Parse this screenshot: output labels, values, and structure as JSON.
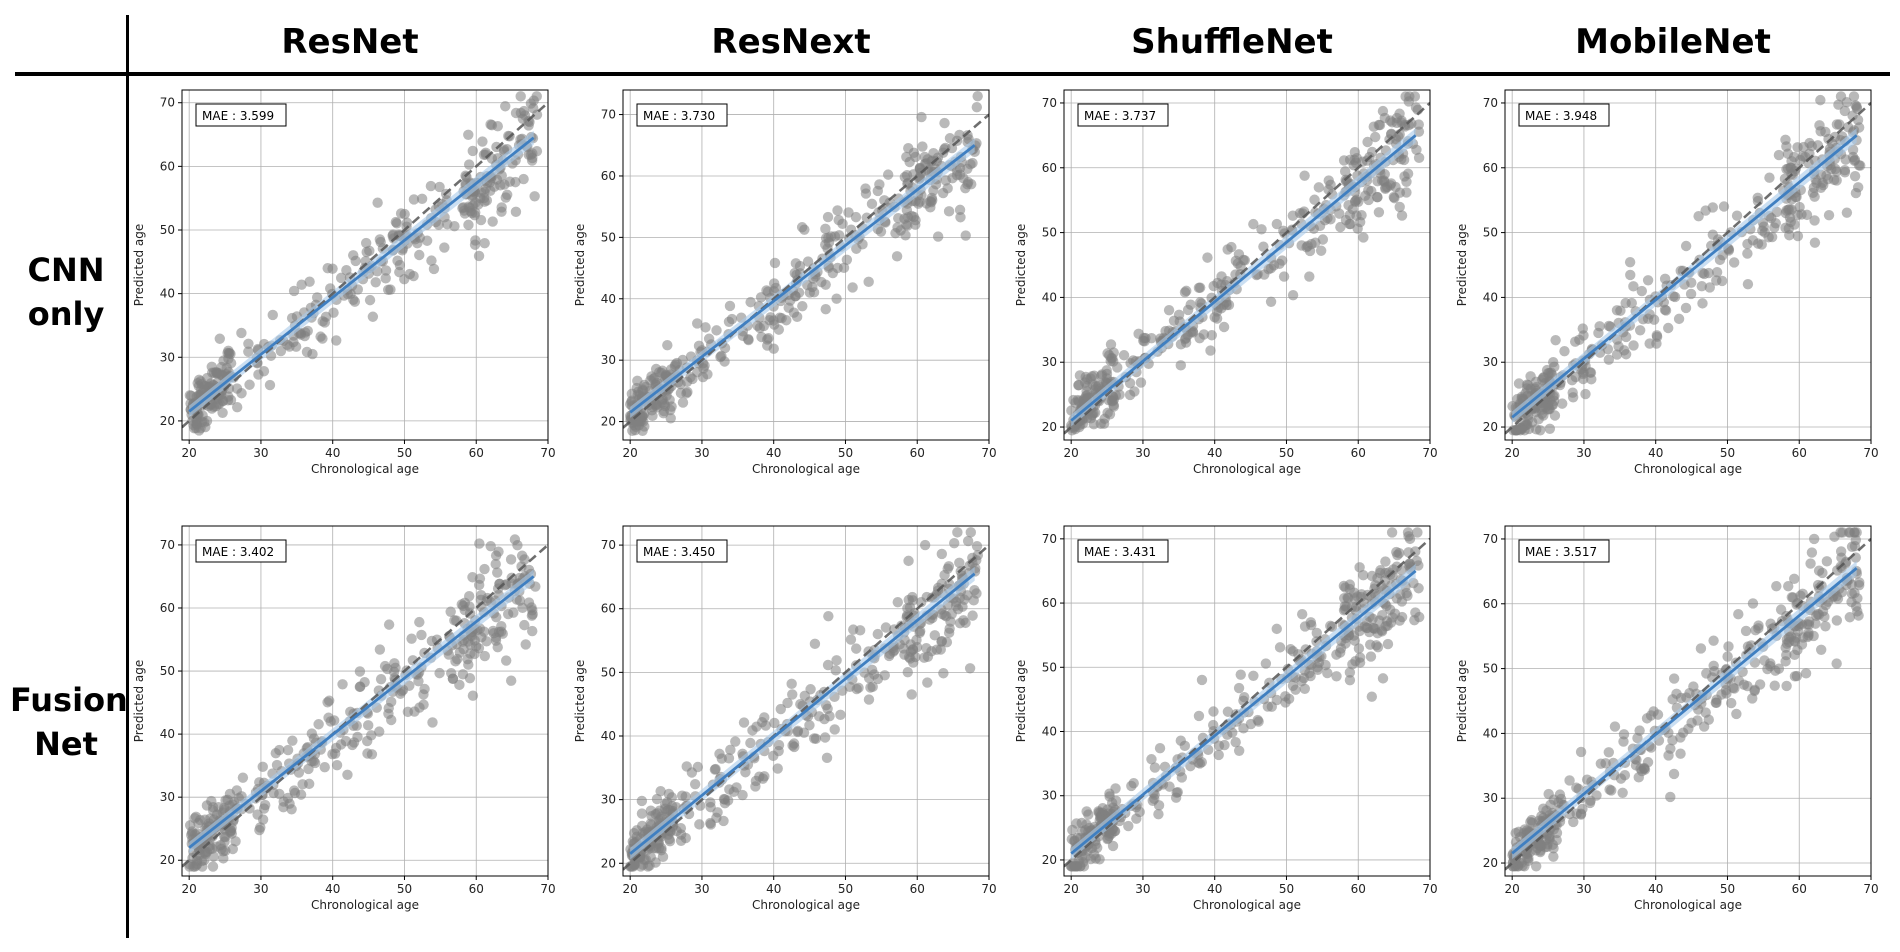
{
  "columns": [
    "ResNet",
    "ResNext",
    "ShuffleNet",
    "MobileNet"
  ],
  "rows": [
    {
      "line1": "CNN",
      "line2": "only"
    },
    {
      "line1": "Fusion",
      "line2": "Net"
    }
  ],
  "chart_data": [
    {
      "type": "scatter",
      "model": "ResNet",
      "method": "CNN only",
      "annotation": "MAE : 3.599",
      "xlabel": "Chronological age",
      "ylabel": "Predicted age",
      "xlim": [
        19,
        70
      ],
      "ylim": [
        17,
        72
      ],
      "xticks": [
        20,
        30,
        40,
        50,
        60,
        70
      ],
      "yticks": [
        20,
        30,
        40,
        50,
        60,
        70
      ],
      "grid": true,
      "point_count": 400,
      "fit": {
        "x": [
          20,
          68
        ],
        "y": [
          21.5,
          64.5
        ]
      },
      "identity": true
    },
    {
      "type": "scatter",
      "model": "ResNext",
      "method": "CNN only",
      "annotation": "MAE : 3.730",
      "xlabel": "Chronological age",
      "ylabel": "Predicted age",
      "xlim": [
        19,
        70
      ],
      "ylim": [
        17,
        74
      ],
      "xticks": [
        20,
        30,
        40,
        50,
        60,
        70
      ],
      "yticks": [
        20,
        30,
        40,
        50,
        60,
        70
      ],
      "grid": true,
      "point_count": 400,
      "fit": {
        "x": [
          20,
          68
        ],
        "y": [
          21.5,
          65
        ]
      },
      "identity": true
    },
    {
      "type": "scatter",
      "model": "ShuffleNet",
      "method": "CNN only",
      "annotation": "MAE : 3.737",
      "xlabel": "Chronological age",
      "ylabel": "Predicted age",
      "xlim": [
        19,
        70
      ],
      "ylim": [
        18,
        72
      ],
      "xticks": [
        20,
        30,
        40,
        50,
        60,
        70
      ],
      "yticks": [
        20,
        30,
        40,
        50,
        60,
        70
      ],
      "grid": true,
      "point_count": 400,
      "fit": {
        "x": [
          20,
          68
        ],
        "y": [
          21,
          65
        ]
      },
      "identity": true
    },
    {
      "type": "scatter",
      "model": "MobileNet",
      "method": "CNN only",
      "annotation": "MAE : 3.948",
      "xlabel": "Chronological age",
      "ylabel": "Predicted age",
      "xlim": [
        19,
        70
      ],
      "ylim": [
        18,
        72
      ],
      "xticks": [
        20,
        30,
        40,
        50,
        60,
        70
      ],
      "yticks": [
        20,
        30,
        40,
        50,
        60,
        70
      ],
      "grid": true,
      "point_count": 400,
      "fit": {
        "x": [
          20,
          68
        ],
        "y": [
          21.5,
          65
        ]
      },
      "identity": true
    },
    {
      "type": "scatter",
      "model": "ResNet",
      "method": "Fusion Net",
      "annotation": "MAE : 3.402",
      "xlabel": "Chronological age",
      "ylabel": "Predicted age",
      "xlim": [
        19,
        70
      ],
      "ylim": [
        17.5,
        73
      ],
      "xticks": [
        20,
        30,
        40,
        50,
        60,
        70
      ],
      "yticks": [
        20,
        30,
        40,
        50,
        60,
        70
      ],
      "grid": true,
      "point_count": 400,
      "fit": {
        "x": [
          20,
          68
        ],
        "y": [
          22,
          65
        ]
      },
      "identity": true
    },
    {
      "type": "scatter",
      "model": "ResNext",
      "method": "Fusion Net",
      "annotation": "MAE : 3.450",
      "xlabel": "Chronological age",
      "ylabel": "Predicted age",
      "xlim": [
        19,
        70
      ],
      "ylim": [
        18,
        73
      ],
      "xticks": [
        20,
        30,
        40,
        50,
        60,
        70
      ],
      "yticks": [
        20,
        30,
        40,
        50,
        60,
        70
      ],
      "grid": true,
      "point_count": 400,
      "fit": {
        "x": [
          20,
          68
        ],
        "y": [
          21.5,
          65.5
        ]
      },
      "identity": true
    },
    {
      "type": "scatter",
      "model": "ShuffleNet",
      "method": "Fusion Net",
      "annotation": "MAE : 3.431",
      "xlabel": "Chronological age",
      "ylabel": "Predicted age",
      "xlim": [
        19,
        70
      ],
      "ylim": [
        17.5,
        72
      ],
      "xticks": [
        20,
        30,
        40,
        50,
        60,
        70
      ],
      "yticks": [
        20,
        30,
        40,
        50,
        60,
        70
      ],
      "grid": true,
      "point_count": 400,
      "fit": {
        "x": [
          20,
          68
        ],
        "y": [
          21,
          65
        ]
      },
      "identity": true
    },
    {
      "type": "scatter",
      "model": "MobileNet",
      "method": "Fusion Net",
      "annotation": "MAE : 3.517",
      "xlabel": "Chronological age",
      "ylabel": "Predicted age",
      "xlim": [
        19,
        70
      ],
      "ylim": [
        18,
        72
      ],
      "xticks": [
        20,
        30,
        40,
        50,
        60,
        70
      ],
      "yticks": [
        20,
        30,
        40,
        50,
        60,
        70
      ],
      "grid": true,
      "point_count": 400,
      "fit": {
        "x": [
          20,
          68
        ],
        "y": [
          21.5,
          65.5
        ]
      },
      "identity": true
    }
  ],
  "colors": {
    "points": "#808080",
    "fit_line": "#3f7fc1",
    "fit_band": "#a9c9ea",
    "identity_line": "#555555",
    "grid": "#b0b0b0"
  }
}
